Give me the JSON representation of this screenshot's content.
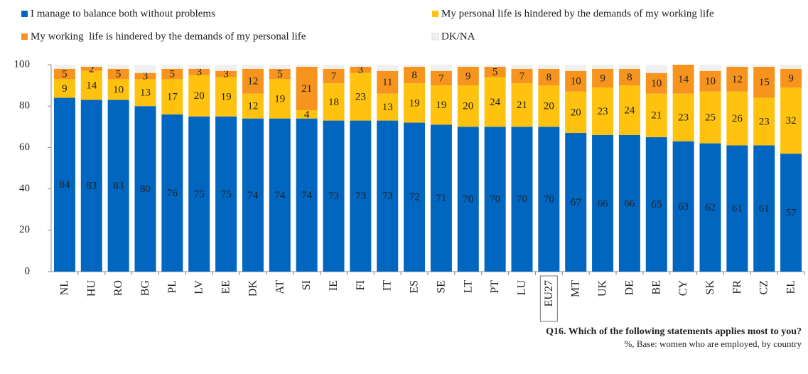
{
  "chart_data": {
    "type": "stacked_bar",
    "categories": [
      "NL",
      "HU",
      "RO",
      "BG",
      "PL",
      "LV",
      "EE",
      "DK",
      "AT",
      "SI",
      "IE",
      "FI",
      "IT",
      "ES",
      "SE",
      "LT",
      "PT",
      "LU",
      "EU27",
      "MT",
      "UK",
      "DE",
      "BE",
      "CY",
      "SK",
      "FR",
      "CZ",
      "EL"
    ],
    "highlighted_category": "EU27",
    "series": [
      {
        "name": "I manage to balance both without problems",
        "color": "#0066c0",
        "label_color": "#ffffff",
        "values": [
          84,
          83,
          83,
          80,
          76,
          75,
          75,
          74,
          74,
          74,
          73,
          73,
          73,
          72,
          71,
          70,
          70,
          70,
          70,
          67,
          66,
          66,
          65,
          63,
          62,
          61,
          61,
          57
        ]
      },
      {
        "name": "My personal life is hindered by the demands of my working life",
        "color": "#ffc20e",
        "label_color": "#222222",
        "values": [
          9,
          14,
          10,
          13,
          17,
          20,
          19,
          12,
          19,
          4,
          18,
          23,
          13,
          19,
          19,
          20,
          24,
          21,
          20,
          20,
          23,
          24,
          21,
          23,
          25,
          26,
          23,
          32
        ]
      },
      {
        "name": "My working  life is hindered by the demands of my personal life",
        "color": "#f7941d",
        "label_color": "#222222",
        "values": [
          5,
          2,
          5,
          3,
          5,
          3,
          3,
          12,
          5,
          21,
          7,
          3,
          11,
          8,
          7,
          9,
          5,
          7,
          8,
          10,
          9,
          8,
          10,
          14,
          10,
          12,
          15,
          9
        ]
      },
      {
        "name": "DK/NA",
        "color": "#f0f0f0",
        "values": [
          2,
          1,
          2,
          4,
          2,
          2,
          3,
          2,
          2,
          1,
          2,
          1,
          3,
          1,
          3,
          1,
          1,
          2,
          2,
          3,
          2,
          2,
          4,
          0,
          3,
          1,
          1,
          2
        ]
      }
    ],
    "ylim": [
      0,
      100
    ],
    "yticks": [
      0,
      20,
      40,
      60,
      80,
      100
    ],
    "footnote": {
      "question": "Q16. Which of the following statements applies most to you?",
      "base": "%, Base: women who are employed, by country"
    }
  }
}
